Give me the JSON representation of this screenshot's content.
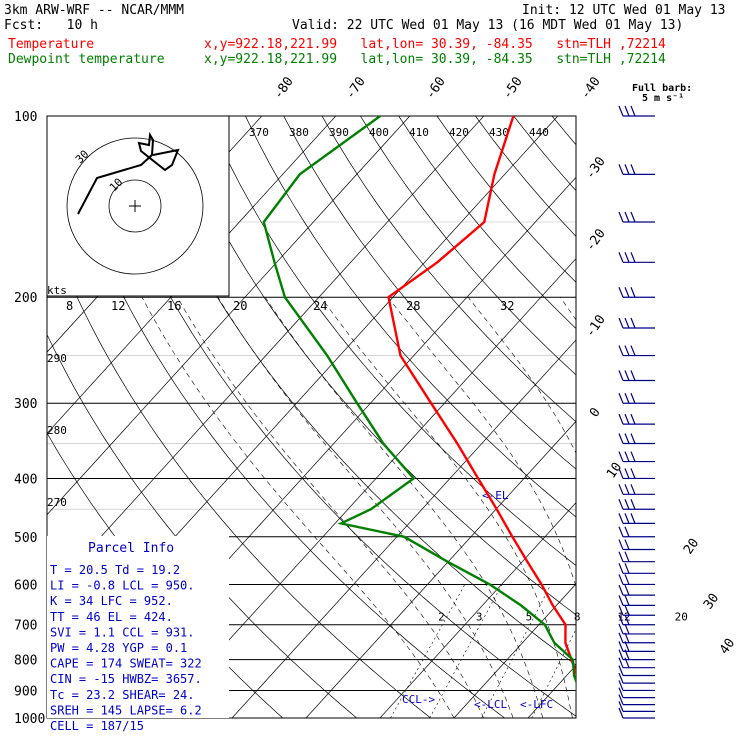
{
  "header": {
    "model": "3km ARW-WRF -- NCAR/MMM",
    "init": "Init: 12 UTC Wed 01 May 13",
    "fcst": "Fcst:   10 h",
    "valid": "Valid: 22 UTC Wed 01 May 13 (16 MDT Wed 01 May 13)",
    "temp_label": "Temperature",
    "temp_loc": "x,y=922.18,221.99   lat,lon= 30.39, -84.35   stn=TLH ,72214",
    "dew_label": "Dewpoint temperature",
    "dew_loc": "x,y=922.18,221.99   lat,lon= 30.39, -84.35   stn=TLH ,72214",
    "temp_color": "#ff0000",
    "dew_color": "#008000"
  },
  "barb_legend": {
    "line1": "Full barb:",
    "line2": "5 m s⁻¹"
  },
  "parcel_info": {
    "title": "Parcel Info",
    "rows": [
      "T  =   20.5 Td =  19.2",
      "LI =   -0.8 LCL =  950.",
      "K  =     34 LFC =  952.",
      "TT =     46 EL  =  424.",
      "SVI =   1.1 CCL =  931.",
      "PW =   4.28 YGP =   0.1",
      "CAPE =  174 SWEAT=  322",
      "CIN =   -15 HWBZ= 3657.",
      "Tc =   23.2 SHEAR=  24.",
      "SREH =  145 LAPSE=  6.2",
      "CELL = 187/15"
    ]
  },
  "chart_data": {
    "type": "line",
    "title": "",
    "xlabel": "",
    "ylabel": "",
    "pressure_ticks": [
      "100",
      "200",
      "300",
      "400",
      "500",
      "600",
      "700",
      "800",
      "900",
      "1000"
    ],
    "isotherm_labels": [
      "-80",
      "-70",
      "-60",
      "-50",
      "-40",
      "-30",
      "-20",
      "-10",
      "0",
      "10",
      "20",
      "30",
      "40"
    ],
    "theta_labels": [
      "370",
      "380",
      "390",
      "400",
      "410",
      "420",
      "430",
      "440"
    ],
    "theta_left_labels": [
      "290",
      "280",
      "270"
    ],
    "mixing_ratio_labels": [
      "2",
      "3",
      "5",
      "8",
      "12",
      "20"
    ],
    "hodo_kts_label": "kts",
    "hodo_speed_labels": [
      "8",
      "12",
      "16",
      "20",
      "24",
      "28",
      "32"
    ],
    "hodo_ring_labels": [
      "30",
      "10"
    ],
    "annotations": {
      "el": "<-EL",
      "lcl": "<-LCL",
      "lfc": "<-LFC",
      "ccl": "CCL->"
    },
    "series": [
      {
        "name": "Temperature",
        "points": [
          [
            1000,
            20.5
          ],
          [
            975,
            19.4
          ],
          [
            950,
            17.5
          ],
          [
            925,
            16.3
          ],
          [
            900,
            14.9
          ],
          [
            875,
            13.5
          ],
          [
            850,
            11.4
          ],
          [
            800,
            8.7
          ],
          [
            750,
            5.8
          ],
          [
            700,
            3.6
          ],
          [
            650,
            -0.5
          ],
          [
            600,
            -4.6
          ],
          [
            550,
            -9.3
          ],
          [
            500,
            -14.4
          ],
          [
            450,
            -19.9
          ],
          [
            400,
            -26.2
          ],
          [
            350,
            -33.3
          ],
          [
            300,
            -41.8
          ],
          [
            250,
            -51.8
          ],
          [
            200,
            -60.6
          ],
          [
            175,
            -58.3
          ],
          [
            150,
            -56.9
          ],
          [
            125,
            -61.4
          ],
          [
            100,
            -66.0
          ]
        ]
      },
      {
        "name": "Dewpoint temperature",
        "points": [
          [
            1000,
            19.2
          ],
          [
            975,
            17.7
          ],
          [
            950,
            15.8
          ],
          [
            925,
            14.6
          ],
          [
            900,
            13.2
          ],
          [
            875,
            12.3
          ],
          [
            850,
            11.0
          ],
          [
            800,
            8.9
          ],
          [
            750,
            4.3
          ],
          [
            700,
            0.8
          ],
          [
            650,
            -4.8
          ],
          [
            600,
            -11.6
          ],
          [
            550,
            -20.1
          ],
          [
            500,
            -29.0
          ],
          [
            475,
            -39.2
          ],
          [
            450,
            -36.9
          ],
          [
            400,
            -34.9
          ],
          [
            350,
            -43.3
          ],
          [
            300,
            -51.8
          ],
          [
            250,
            -61.7
          ],
          [
            200,
            -74.6
          ],
          [
            175,
            -80.3
          ],
          [
            150,
            -86.7
          ],
          [
            125,
            -87.7
          ],
          [
            100,
            -84.0
          ]
        ]
      }
    ]
  }
}
